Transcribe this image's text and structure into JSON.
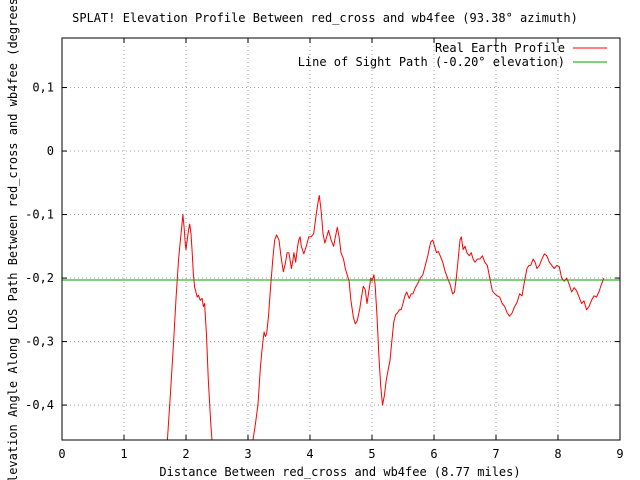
{
  "chart_data": {
    "type": "line",
    "title": "SPLAT! Elevation Profile Between red_cross and wb4fee (93.38° azimuth)",
    "xlabel": "Distance Between red_cross and wb4fee (8.77 miles)",
    "ylabel": "Elevation Angle Along LOS Path Between red_cross and wb4fee (degrees)",
    "xlim": [
      0,
      9
    ],
    "ylim": [
      -0.455,
      0.178
    ],
    "x_ticks": [
      0,
      1,
      2,
      3,
      4,
      5,
      6,
      7,
      8,
      9
    ],
    "x_tick_labels": [
      "0",
      "1",
      "2",
      "3",
      "4",
      "5",
      "6",
      "7",
      "8",
      "9"
    ],
    "y_ticks": [
      0.1,
      0,
      -0.1,
      -0.2,
      -0.3,
      -0.4
    ],
    "y_tick_labels": [
      "0,1",
      "0",
      "-0,1",
      "-0,2",
      "-0,3",
      "-0,4"
    ],
    "grid": true,
    "legend_position": "top-right",
    "series": [
      {
        "name": "Real Earth Profile",
        "color": "#ff0000",
        "segments": [
          [
            [
              1.7,
              -0.455
            ],
            [
              1.75,
              -0.38
            ],
            [
              1.8,
              -0.3
            ],
            [
              1.84,
              -0.23
            ],
            [
              1.88,
              -0.17
            ],
            [
              1.91,
              -0.14
            ],
            [
              1.93,
              -0.12
            ],
            [
              1.95,
              -0.1
            ],
            [
              1.97,
              -0.12
            ],
            [
              1.99,
              -0.148
            ],
            [
              2.0,
              -0.155
            ],
            [
              2.02,
              -0.14
            ],
            [
              2.04,
              -0.125
            ],
            [
              2.06,
              -0.115
            ],
            [
              2.08,
              -0.13
            ],
            [
              2.1,
              -0.16
            ],
            [
              2.12,
              -0.195
            ],
            [
              2.14,
              -0.215
            ],
            [
              2.16,
              -0.222
            ],
            [
              2.18,
              -0.23
            ],
            [
              2.2,
              -0.227
            ],
            [
              2.23,
              -0.235
            ],
            [
              2.26,
              -0.232
            ],
            [
              2.28,
              -0.245
            ],
            [
              2.3,
              -0.24
            ],
            [
              2.33,
              -0.29
            ],
            [
              2.36,
              -0.36
            ],
            [
              2.4,
              -0.43
            ],
            [
              2.42,
              -0.455
            ]
          ],
          [
            [
              3.08,
              -0.455
            ],
            [
              3.12,
              -0.43
            ],
            [
              3.16,
              -0.4
            ],
            [
              3.18,
              -0.37
            ],
            [
              3.2,
              -0.34
            ],
            [
              3.22,
              -0.32
            ],
            [
              3.24,
              -0.3
            ],
            [
              3.26,
              -0.285
            ],
            [
              3.28,
              -0.292
            ],
            [
              3.3,
              -0.288
            ],
            [
              3.33,
              -0.26
            ],
            [
              3.36,
              -0.22
            ],
            [
              3.4,
              -0.17
            ],
            [
              3.43,
              -0.14
            ],
            [
              3.46,
              -0.132
            ],
            [
              3.5,
              -0.14
            ],
            [
              3.53,
              -0.165
            ],
            [
              3.57,
              -0.19
            ],
            [
              3.6,
              -0.178
            ],
            [
              3.63,
              -0.16
            ],
            [
              3.66,
              -0.16
            ],
            [
              3.7,
              -0.185
            ],
            [
              3.72,
              -0.175
            ],
            [
              3.74,
              -0.16
            ],
            [
              3.77,
              -0.175
            ],
            [
              3.8,
              -0.15
            ],
            [
              3.82,
              -0.14
            ],
            [
              3.84,
              -0.135
            ],
            [
              3.86,
              -0.15
            ],
            [
              3.9,
              -0.162
            ],
            [
              3.94,
              -0.15
            ],
            [
              3.98,
              -0.135
            ],
            [
              4.02,
              -0.135
            ],
            [
              4.06,
              -0.13
            ],
            [
              4.1,
              -0.1
            ],
            [
              4.13,
              -0.08
            ],
            [
              4.15,
              -0.07
            ],
            [
              4.18,
              -0.095
            ],
            [
              4.21,
              -0.13
            ],
            [
              4.24,
              -0.145
            ],
            [
              4.27,
              -0.135
            ],
            [
              4.3,
              -0.125
            ],
            [
              4.34,
              -0.14
            ],
            [
              4.38,
              -0.15
            ],
            [
              4.41,
              -0.135
            ],
            [
              4.44,
              -0.12
            ],
            [
              4.47,
              -0.135
            ],
            [
              4.5,
              -0.16
            ],
            [
              4.54,
              -0.17
            ],
            [
              4.57,
              -0.185
            ],
            [
              4.6,
              -0.195
            ],
            [
              4.63,
              -0.205
            ],
            [
              4.66,
              -0.235
            ],
            [
              4.7,
              -0.262
            ],
            [
              4.73,
              -0.272
            ],
            [
              4.76,
              -0.268
            ],
            [
              4.8,
              -0.25
            ],
            [
              4.83,
              -0.23
            ],
            [
              4.86,
              -0.213
            ],
            [
              4.89,
              -0.218
            ],
            [
              4.92,
              -0.24
            ],
            [
              4.95,
              -0.22
            ],
            [
              4.98,
              -0.2
            ],
            [
              5.0,
              -0.205
            ],
            [
              5.03,
              -0.195
            ],
            [
              5.05,
              -0.21
            ],
            [
              5.08,
              -0.26
            ],
            [
              5.11,
              -0.32
            ],
            [
              5.14,
              -0.37
            ],
            [
              5.17,
              -0.4
            ],
            [
              5.2,
              -0.385
            ],
            [
              5.23,
              -0.36
            ],
            [
              5.26,
              -0.345
            ],
            [
              5.29,
              -0.33
            ],
            [
              5.32,
              -0.3
            ],
            [
              5.35,
              -0.27
            ],
            [
              5.38,
              -0.258
            ],
            [
              5.41,
              -0.255
            ],
            [
              5.44,
              -0.25
            ],
            [
              5.47,
              -0.25
            ],
            [
              5.5,
              -0.24
            ],
            [
              5.53,
              -0.228
            ],
            [
              5.56,
              -0.222
            ],
            [
              5.6,
              -0.232
            ],
            [
              5.63,
              -0.225
            ],
            [
              5.66,
              -0.225
            ],
            [
              5.7,
              -0.215
            ],
            [
              5.74,
              -0.208
            ],
            [
              5.78,
              -0.2
            ],
            [
              5.82,
              -0.195
            ],
            [
              5.86,
              -0.18
            ],
            [
              5.9,
              -0.165
            ],
            [
              5.93,
              -0.15
            ],
            [
              5.95,
              -0.143
            ],
            [
              5.98,
              -0.14
            ],
            [
              6.01,
              -0.15
            ],
            [
              6.04,
              -0.16
            ],
            [
              6.07,
              -0.158
            ],
            [
              6.1,
              -0.165
            ],
            [
              6.14,
              -0.175
            ],
            [
              6.18,
              -0.19
            ],
            [
              6.22,
              -0.2
            ],
            [
              6.26,
              -0.21
            ],
            [
              6.3,
              -0.225
            ],
            [
              6.33,
              -0.222
            ],
            [
              6.36,
              -0.2
            ],
            [
              6.39,
              -0.17
            ],
            [
              6.42,
              -0.14
            ],
            [
              6.44,
              -0.135
            ],
            [
              6.47,
              -0.155
            ],
            [
              6.5,
              -0.15
            ],
            [
              6.53,
              -0.16
            ],
            [
              6.57,
              -0.165
            ],
            [
              6.6,
              -0.16
            ],
            [
              6.63,
              -0.17
            ],
            [
              6.66,
              -0.175
            ],
            [
              6.7,
              -0.17
            ],
            [
              6.74,
              -0.17
            ],
            [
              6.78,
              -0.165
            ],
            [
              6.82,
              -0.175
            ],
            [
              6.86,
              -0.18
            ],
            [
              6.9,
              -0.2
            ],
            [
              6.94,
              -0.22
            ],
            [
              6.98,
              -0.225
            ],
            [
              7.02,
              -0.228
            ],
            [
              7.06,
              -0.23
            ],
            [
              7.1,
              -0.24
            ],
            [
              7.14,
              -0.245
            ],
            [
              7.18,
              -0.255
            ],
            [
              7.22,
              -0.26
            ],
            [
              7.26,
              -0.255
            ],
            [
              7.3,
              -0.245
            ],
            [
              7.34,
              -0.238
            ],
            [
              7.38,
              -0.225
            ],
            [
              7.42,
              -0.228
            ],
            [
              7.46,
              -0.205
            ],
            [
              7.5,
              -0.185
            ],
            [
              7.53,
              -0.18
            ],
            [
              7.56,
              -0.18
            ],
            [
              7.6,
              -0.17
            ],
            [
              7.63,
              -0.175
            ],
            [
              7.66,
              -0.185
            ],
            [
              7.7,
              -0.18
            ],
            [
              7.74,
              -0.17
            ],
            [
              7.78,
              -0.162
            ],
            [
              7.82,
              -0.165
            ],
            [
              7.86,
              -0.175
            ],
            [
              7.9,
              -0.18
            ],
            [
              7.94,
              -0.185
            ],
            [
              7.98,
              -0.18
            ],
            [
              8.02,
              -0.182
            ],
            [
              8.06,
              -0.2
            ],
            [
              8.1,
              -0.205
            ],
            [
              8.14,
              -0.2
            ],
            [
              8.18,
              -0.21
            ],
            [
              8.22,
              -0.222
            ],
            [
              8.26,
              -0.215
            ],
            [
              8.3,
              -0.22
            ],
            [
              8.34,
              -0.23
            ],
            [
              8.38,
              -0.24
            ],
            [
              8.42,
              -0.236
            ],
            [
              8.46,
              -0.25
            ],
            [
              8.5,
              -0.245
            ],
            [
              8.54,
              -0.235
            ],
            [
              8.58,
              -0.228
            ],
            [
              8.62,
              -0.23
            ],
            [
              8.66,
              -0.222
            ],
            [
              8.7,
              -0.21
            ],
            [
              8.74,
              -0.2
            ]
          ]
        ]
      },
      {
        "name": "Line of Sight Path (-0.20° elevation)",
        "color": "#00a000",
        "points": [
          [
            0,
            -0.203
          ],
          [
            9,
            -0.203
          ]
        ]
      }
    ]
  }
}
